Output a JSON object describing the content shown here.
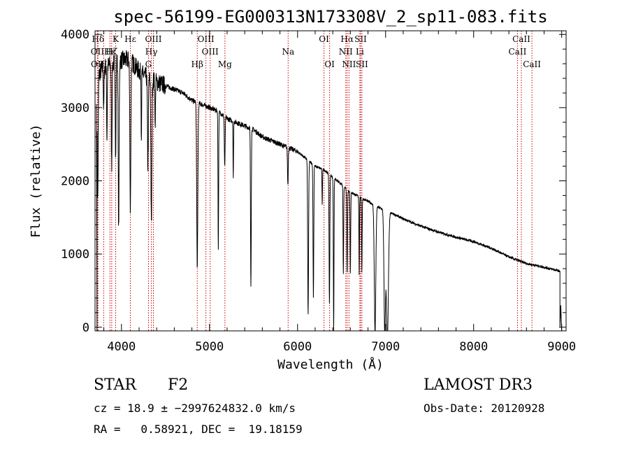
{
  "chart_data": {
    "type": "line",
    "title": "spec-56199-EG000313N173308V_2_sp11-083.fits",
    "xlabel": "Wavelength (Å)",
    "ylabel": "Flux (relative)",
    "xlim": [
      3700,
      9050
    ],
    "ylim": [
      -50,
      4050
    ],
    "xticks": [
      4000,
      5000,
      6000,
      7000,
      8000,
      9000
    ],
    "yticks": [
      0,
      1000,
      2000,
      3000,
      4000
    ],
    "series": [
      {
        "name": "flux",
        "continuum": [
          [
            3700,
            3400
          ],
          [
            3800,
            3550
          ],
          [
            3900,
            3600
          ],
          [
            4000,
            3650
          ],
          [
            4100,
            3650
          ],
          [
            4200,
            3500
          ],
          [
            4300,
            3400
          ],
          [
            4400,
            3350
          ],
          [
            4500,
            3300
          ],
          [
            4600,
            3250
          ],
          [
            4700,
            3200
          ],
          [
            4800,
            3100
          ],
          [
            4900,
            3050
          ],
          [
            5000,
            3000
          ],
          [
            5100,
            2950
          ],
          [
            5200,
            2850
          ],
          [
            5300,
            2800
          ],
          [
            5400,
            2750
          ],
          [
            5500,
            2700
          ],
          [
            5600,
            2600
          ],
          [
            5700,
            2550
          ],
          [
            5800,
            2500
          ],
          [
            5900,
            2450
          ],
          [
            6000,
            2400
          ],
          [
            6100,
            2300
          ],
          [
            6200,
            2200
          ],
          [
            6300,
            2150
          ],
          [
            6400,
            2050
          ],
          [
            6500,
            1950
          ],
          [
            6600,
            1850
          ],
          [
            6700,
            1780
          ],
          [
            6800,
            1720
          ],
          [
            6900,
            1650
          ],
          [
            7000,
            1590
          ],
          [
            7100,
            1540
          ],
          [
            7200,
            1480
          ],
          [
            7400,
            1380
          ],
          [
            7600,
            1300
          ],
          [
            7800,
            1230
          ],
          [
            8000,
            1170
          ],
          [
            8200,
            1080
          ],
          [
            8400,
            960
          ],
          [
            8600,
            870
          ],
          [
            8800,
            820
          ],
          [
            9000,
            760
          ]
        ],
        "absorption": [
          [
            3730,
            1700,
            8
          ],
          [
            3798,
            600,
            5
          ],
          [
            3835,
            1000,
            5
          ],
          [
            3889,
            1400,
            6
          ],
          [
            3934,
            1300,
            6
          ],
          [
            3968,
            2300,
            7
          ],
          [
            4101,
            2000,
            8
          ],
          [
            4226,
            900,
            4
          ],
          [
            4300,
            1200,
            7
          ],
          [
            4340,
            2000,
            8
          ],
          [
            4383,
            700,
            4
          ],
          [
            4861,
            2250,
            9
          ],
          [
            5100,
            1900,
            5
          ],
          [
            5173,
            700,
            6
          ],
          [
            5270,
            800,
            4
          ],
          [
            5470,
            2150,
            6
          ],
          [
            5890,
            500,
            6
          ],
          [
            6120,
            2100,
            7
          ],
          [
            6180,
            1800,
            6
          ],
          [
            6280,
            500,
            4
          ],
          [
            6362,
            1750,
            6
          ],
          [
            6410,
            2100,
            5
          ],
          [
            6520,
            1200,
            5
          ],
          [
            6563,
            1150,
            6
          ],
          [
            6600,
            1100,
            5
          ],
          [
            6700,
            1050,
            4
          ],
          [
            6730,
            1000,
            5
          ],
          [
            6880,
            1750,
            12
          ],
          [
            6990,
            1650,
            12
          ],
          [
            7020,
            1800,
            16
          ]
        ],
        "edges": [
          [
            3715,
            3050
          ],
          [
            3718,
            1800
          ],
          [
            3722,
            -60
          ],
          [
            8980,
            0
          ],
          [
            8990,
            300
          ],
          [
            9000,
            -60
          ]
        ]
      }
    ],
    "line_markers": [
      {
        "label": "Hδ",
        "wavelength": 3734,
        "row": 0
      },
      {
        "label": "K",
        "wavelength": 3934,
        "row": 0
      },
      {
        "label": "Hε",
        "wavelength": 4101,
        "row": 0
      },
      {
        "label": "OIII",
        "wavelength": 4363,
        "row": 0
      },
      {
        "label": "OIII",
        "wavelength": 4959,
        "row": 0
      },
      {
        "label": "OI",
        "wavelength": 6300,
        "row": 0
      },
      {
        "label": "Hα",
        "wavelength": 6563,
        "row": 0
      },
      {
        "label": "SII",
        "wavelength": 6716,
        "row": 0
      },
      {
        "label": "CaII",
        "wavelength": 8542,
        "row": 0
      },
      {
        "label": "OII",
        "wavelength": 3727,
        "row": 1
      },
      {
        "label": "Hε",
        "wavelength": 3869,
        "row": 1
      },
      {
        "label": "Hζ",
        "wavelength": 3889,
        "row": 1
      },
      {
        "label": "Hγ",
        "wavelength": 4340,
        "row": 1
      },
      {
        "label": "OIII",
        "wavelength": 5007,
        "row": 1
      },
      {
        "label": "Na",
        "wavelength": 5893,
        "row": 1
      },
      {
        "label": "NII",
        "wavelength": 6548,
        "row": 1
      },
      {
        "label": "Li",
        "wavelength": 6708,
        "row": 1
      },
      {
        "label": "CaII",
        "wavelength": 8498,
        "row": 1
      },
      {
        "label": "OII",
        "wavelength": 3729,
        "row": 2
      },
      {
        "label": "H",
        "wavelength": 3798,
        "row": 2
      },
      {
        "label": "G",
        "wavelength": 4307,
        "row": 2
      },
      {
        "label": "Hβ",
        "wavelength": 4861,
        "row": 2
      },
      {
        "label": "Mg",
        "wavelength": 5175,
        "row": 2
      },
      {
        "label": "OI",
        "wavelength": 6364,
        "row": 2
      },
      {
        "label": "NII",
        "wavelength": 6584,
        "row": 2
      },
      {
        "label": "SII",
        "wavelength": 6731,
        "row": 2
      },
      {
        "label": "CaII",
        "wavelength": 8662,
        "row": 2
      }
    ]
  },
  "info": {
    "class_label": "STAR",
    "subclass": "F2",
    "survey": "LAMOST DR3",
    "cz_line": "cz = 18.9 ± −2997624832.0 km/s",
    "obs_date": "Obs-Date: 20120928",
    "radec_line": "RA =   0.58921, DEC =  19.18159"
  },
  "colors": {
    "marker": "#cc0000",
    "axis": "#000000",
    "spectrum": "#000000"
  }
}
